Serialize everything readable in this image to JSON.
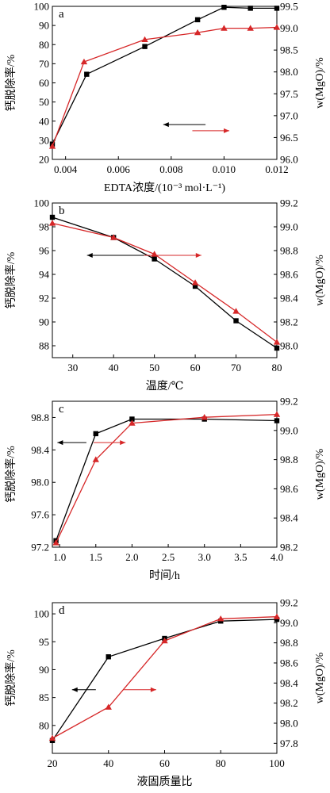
{
  "chart_data": [
    {
      "type": "line",
      "panel_label": "a",
      "xlabel": "EDTA浓度/(10⁻³ mol·L⁻¹)",
      "ylabel_left": "钙脱除率/%",
      "ylabel_right": "w(MgO)/%",
      "xlim": [
        0.0035,
        0.012
      ],
      "ylim_left": [
        20,
        100
      ],
      "ylim_right": [
        96.0,
        99.5
      ],
      "xticks": [
        0.004,
        0.006,
        0.008,
        0.01,
        0.012
      ],
      "xtick_labels": [
        "0.004",
        "0.006",
        "0.008",
        "0.010",
        "0.012"
      ],
      "yticks_left": [
        20,
        30,
        40,
        50,
        60,
        70,
        80,
        90,
        100
      ],
      "ytick_labels_left": [
        "20",
        "30",
        "40",
        "50",
        "60",
        "70",
        "80",
        "90",
        "100"
      ],
      "yticks_right": [
        96.0,
        96.5,
        97.0,
        97.5,
        98.0,
        98.5,
        99.0,
        99.5
      ],
      "ytick_labels_right": [
        "96.0",
        "96.5",
        "97.0",
        "97.5",
        "98.0",
        "98.5",
        "99.0",
        "99.5"
      ],
      "series": [
        {
          "axis": "left",
          "marker": "square",
          "color": "#000000",
          "x": [
            0.0035,
            0.0048,
            0.007,
            0.009,
            0.01,
            0.011,
            0.012
          ],
          "y": [
            28,
            64.5,
            79,
            93,
            99.5,
            99,
            99
          ]
        },
        {
          "axis": "right",
          "marker": "triangle",
          "color": "#d62728",
          "x": [
            0.0035,
            0.0047,
            0.007,
            0.009,
            0.01,
            0.011,
            0.012
          ],
          "y": [
            96.3,
            98.23,
            98.74,
            98.9,
            99.0,
            99.0,
            99.02
          ]
        }
      ],
      "arrows": [
        {
          "direction": "left",
          "color": "#000000",
          "x1": 0.0093,
          "x2": 0.0077,
          "y": 38.2
        },
        {
          "direction": "right",
          "color": "#d62728",
          "x1": 0.0088,
          "x2": 0.0102,
          "y": 35.0
        }
      ]
    },
    {
      "type": "line",
      "panel_label": "b",
      "xlabel": "温度/℃",
      "ylabel_left": "钙脱除率/%",
      "ylabel_right": "w(MgO)/%",
      "xlim": [
        25,
        80
      ],
      "ylim_left": [
        87,
        100
      ],
      "ylim_right": [
        97.9,
        99.2
      ],
      "xticks": [
        30,
        40,
        50,
        60,
        70,
        80
      ],
      "xtick_labels": [
        "30",
        "40",
        "50",
        "60",
        "70",
        "80"
      ],
      "yticks_left": [
        88,
        90,
        92,
        94,
        96,
        98,
        100
      ],
      "ytick_labels_left": [
        "88",
        "90",
        "92",
        "94",
        "96",
        "98",
        "100"
      ],
      "yticks_right": [
        98.0,
        98.2,
        98.4,
        98.6,
        98.8,
        99.0,
        99.2
      ],
      "ytick_labels_right": [
        "98.0",
        "98.2",
        "98.4",
        "98.6",
        "98.8",
        "99.0",
        "99.2"
      ],
      "series": [
        {
          "axis": "left",
          "marker": "square",
          "color": "#000000",
          "x": [
            25,
            40,
            50,
            60,
            70,
            80
          ],
          "y": [
            98.8,
            97.1,
            95.3,
            93.0,
            90.1,
            87.8
          ]
        },
        {
          "axis": "right",
          "marker": "triangle",
          "color": "#d62728",
          "x": [
            25,
            40,
            50,
            60,
            70,
            80
          ],
          "y": [
            99.03,
            98.91,
            98.77,
            98.53,
            98.29,
            98.03
          ]
        }
      ],
      "arrows": [
        {
          "direction": "left",
          "color": "#000000",
          "x1": 47.5,
          "x2": 33.5,
          "y": 95.6
        },
        {
          "direction": "right",
          "color": "#d62728",
          "x1": 47.5,
          "x2": 61.5,
          "y": 95.6
        }
      ]
    },
    {
      "type": "line",
      "panel_label": "c",
      "xlabel": "时间/h",
      "ylabel_left": "钙脱除率/%",
      "ylabel_right": "w(MgO)/%",
      "xlim": [
        0.9,
        4.0
      ],
      "ylim_left": [
        97.2,
        99.0
      ],
      "ylim_right": [
        98.2,
        99.2
      ],
      "xticks": [
        1.0,
        1.5,
        2.0,
        2.5,
        3.0,
        3.5,
        4.0
      ],
      "xtick_labels": [
        "1.0",
        "1.5",
        "2.0",
        "2.5",
        "3.0",
        "3.5",
        "4.0"
      ],
      "yticks_left": [
        97.2,
        97.6,
        98.0,
        98.4,
        98.8
      ],
      "ytick_labels_left": [
        "97.2",
        "97.6",
        "98.0",
        "98.4",
        "98.8"
      ],
      "yticks_right": [
        98.2,
        98.4,
        98.6,
        98.8,
        99.0,
        99.2
      ],
      "ytick_labels_right": [
        "98.2",
        "98.4",
        "98.6",
        "98.8",
        "99.0",
        "99.2"
      ],
      "series": [
        {
          "axis": "left",
          "marker": "square",
          "color": "#000000",
          "x": [
            0.95,
            1.5,
            2.0,
            3.0,
            4.0
          ],
          "y": [
            97.28,
            98.6,
            98.78,
            98.78,
            98.76
          ]
        },
        {
          "axis": "right",
          "marker": "triangle",
          "color": "#d62728",
          "x": [
            0.95,
            1.5,
            2.0,
            3.0,
            4.0
          ],
          "y": [
            98.23,
            98.8,
            99.05,
            99.09,
            99.11
          ]
        }
      ],
      "arrows": [
        {
          "direction": "left",
          "color": "#000000",
          "x1": 1.37,
          "x2": 0.97,
          "y": 98.49
        },
        {
          "direction": "right",
          "color": "#d62728",
          "x1": 1.47,
          "x2": 1.91,
          "y": 98.49
        }
      ]
    },
    {
      "type": "line",
      "panel_label": "d",
      "xlabel": "液固质量比",
      "ylabel_left": "钙脱除率/%",
      "ylabel_right": "w(MgO)/%",
      "xlim": [
        20,
        100
      ],
      "ylim_left": [
        75,
        102
      ],
      "ylim_right": [
        97.7,
        99.2
      ],
      "xticks": [
        20,
        40,
        60,
        80,
        100
      ],
      "xtick_labels": [
        "20",
        "40",
        "60",
        "80",
        "100"
      ],
      "yticks_left": [
        75,
        80,
        85,
        90,
        95,
        100
      ],
      "ytick_labels_left": [
        "",
        "80",
        "85",
        "90",
        "95",
        "100"
      ],
      "yticks_right": [
        97.8,
        98.0,
        98.2,
        98.4,
        98.6,
        98.8,
        99.0,
        99.2
      ],
      "ytick_labels_right": [
        "97.8",
        "98.0",
        "98.2",
        "98.4",
        "98.6",
        "98.8",
        "99.0",
        "99.2"
      ],
      "series": [
        {
          "axis": "left",
          "marker": "square",
          "color": "#000000",
          "x": [
            20,
            40,
            60,
            80,
            100
          ],
          "y": [
            77.3,
            92.3,
            95.6,
            98.7,
            99.0
          ]
        },
        {
          "axis": "right",
          "marker": "triangle",
          "color": "#d62728",
          "x": [
            20,
            40,
            60,
            80,
            100
          ],
          "y": [
            97.85,
            98.16,
            98.82,
            99.04,
            99.06
          ]
        }
      ],
      "arrows": [
        {
          "direction": "left",
          "color": "#000000",
          "x1": 35.5,
          "x2": 27.0,
          "y": 86.4
        },
        {
          "direction": "right",
          "color": "#d62728",
          "x1": 45.5,
          "x2": 57.0,
          "y": 86.4
        }
      ]
    }
  ]
}
